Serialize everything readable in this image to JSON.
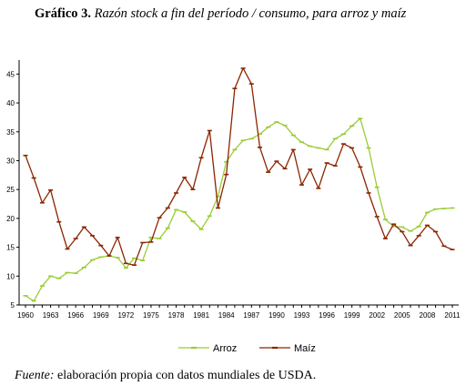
{
  "figure": {
    "label": "Gráfico 3.",
    "title_italic_1": "Razón stock",
    "title_plain": " ",
    "title_italic_2": "a fin del período / consumo, para arroz y maíz",
    "source_label": "Fuente:",
    "source_text": " elaboración propia con datos mundiales de USDA."
  },
  "chart_data": {
    "type": "line",
    "title": "Gráfico 3. Razón stock a fin del período / consumo, para arroz y maíz",
    "xlabel": "",
    "ylabel": "",
    "x": [
      1960,
      1961,
      1962,
      1963,
      1964,
      1965,
      1966,
      1967,
      1968,
      1969,
      1970,
      1971,
      1972,
      1973,
      1974,
      1975,
      1976,
      1977,
      1978,
      1979,
      1980,
      1981,
      1982,
      1983,
      1984,
      1985,
      1986,
      1987,
      1988,
      1989,
      1990,
      1991,
      1992,
      1993,
      1994,
      1995,
      1996,
      1997,
      1998,
      1999,
      2000,
      2001,
      2002,
      2003,
      2004,
      2005,
      2006,
      2007,
      2008,
      2009,
      2010,
      2011
    ],
    "x_tick_labels": [
      "1960",
      "1963",
      "1966",
      "1969",
      "1972",
      "1975",
      "1978",
      "1981",
      "1984",
      "1987",
      "1990",
      "1993",
      "1996",
      "1999",
      "2002",
      "2005",
      "2008",
      "2011"
    ],
    "y_ticks": [
      5,
      10,
      15,
      20,
      25,
      30,
      35,
      40,
      45
    ],
    "ylim": [
      5,
      46
    ],
    "grid": false,
    "legend_position": "bottom",
    "series": [
      {
        "name": "Arroz",
        "color": "#99cc33",
        "marker": "dash",
        "values": [
          6.6,
          5.7,
          8.3,
          10.0,
          9.6,
          10.6,
          10.5,
          11.5,
          12.8,
          13.3,
          13.5,
          13.2,
          11.4,
          13.1,
          12.7,
          16.7,
          16.5,
          18.3,
          21.5,
          21.1,
          19.5,
          18.1,
          20.4,
          23.8,
          29.8,
          31.9,
          33.5,
          33.8,
          34.6,
          35.8,
          36.7,
          36.1,
          34.4,
          33.2,
          32.5,
          32.2,
          31.9,
          33.8,
          34.6,
          36.0,
          37.3,
          32.2,
          25.4,
          19.8,
          18.6,
          18.5,
          17.8,
          18.6,
          21.0,
          21.6,
          21.7,
          21.8
        ]
      },
      {
        "name": "Maíz",
        "color": "#8b2500",
        "marker": "dash",
        "values": [
          30.9,
          27.0,
          22.7,
          24.9,
          19.4,
          14.7,
          16.5,
          18.5,
          17.0,
          15.3,
          13.5,
          16.7,
          12.2,
          11.9,
          15.8,
          15.9,
          20.1,
          21.8,
          24.4,
          27.1,
          25.0,
          30.5,
          35.2,
          21.8,
          27.6,
          42.5,
          46.0,
          43.3,
          32.3,
          28.0,
          29.9,
          28.6,
          31.9,
          25.8,
          28.5,
          25.2,
          29.6,
          29.1,
          32.9,
          32.2,
          28.9,
          24.4,
          20.3,
          16.5,
          19.0,
          17.7,
          15.3,
          17.0,
          18.8,
          17.7,
          15.2,
          14.6
        ]
      }
    ]
  }
}
